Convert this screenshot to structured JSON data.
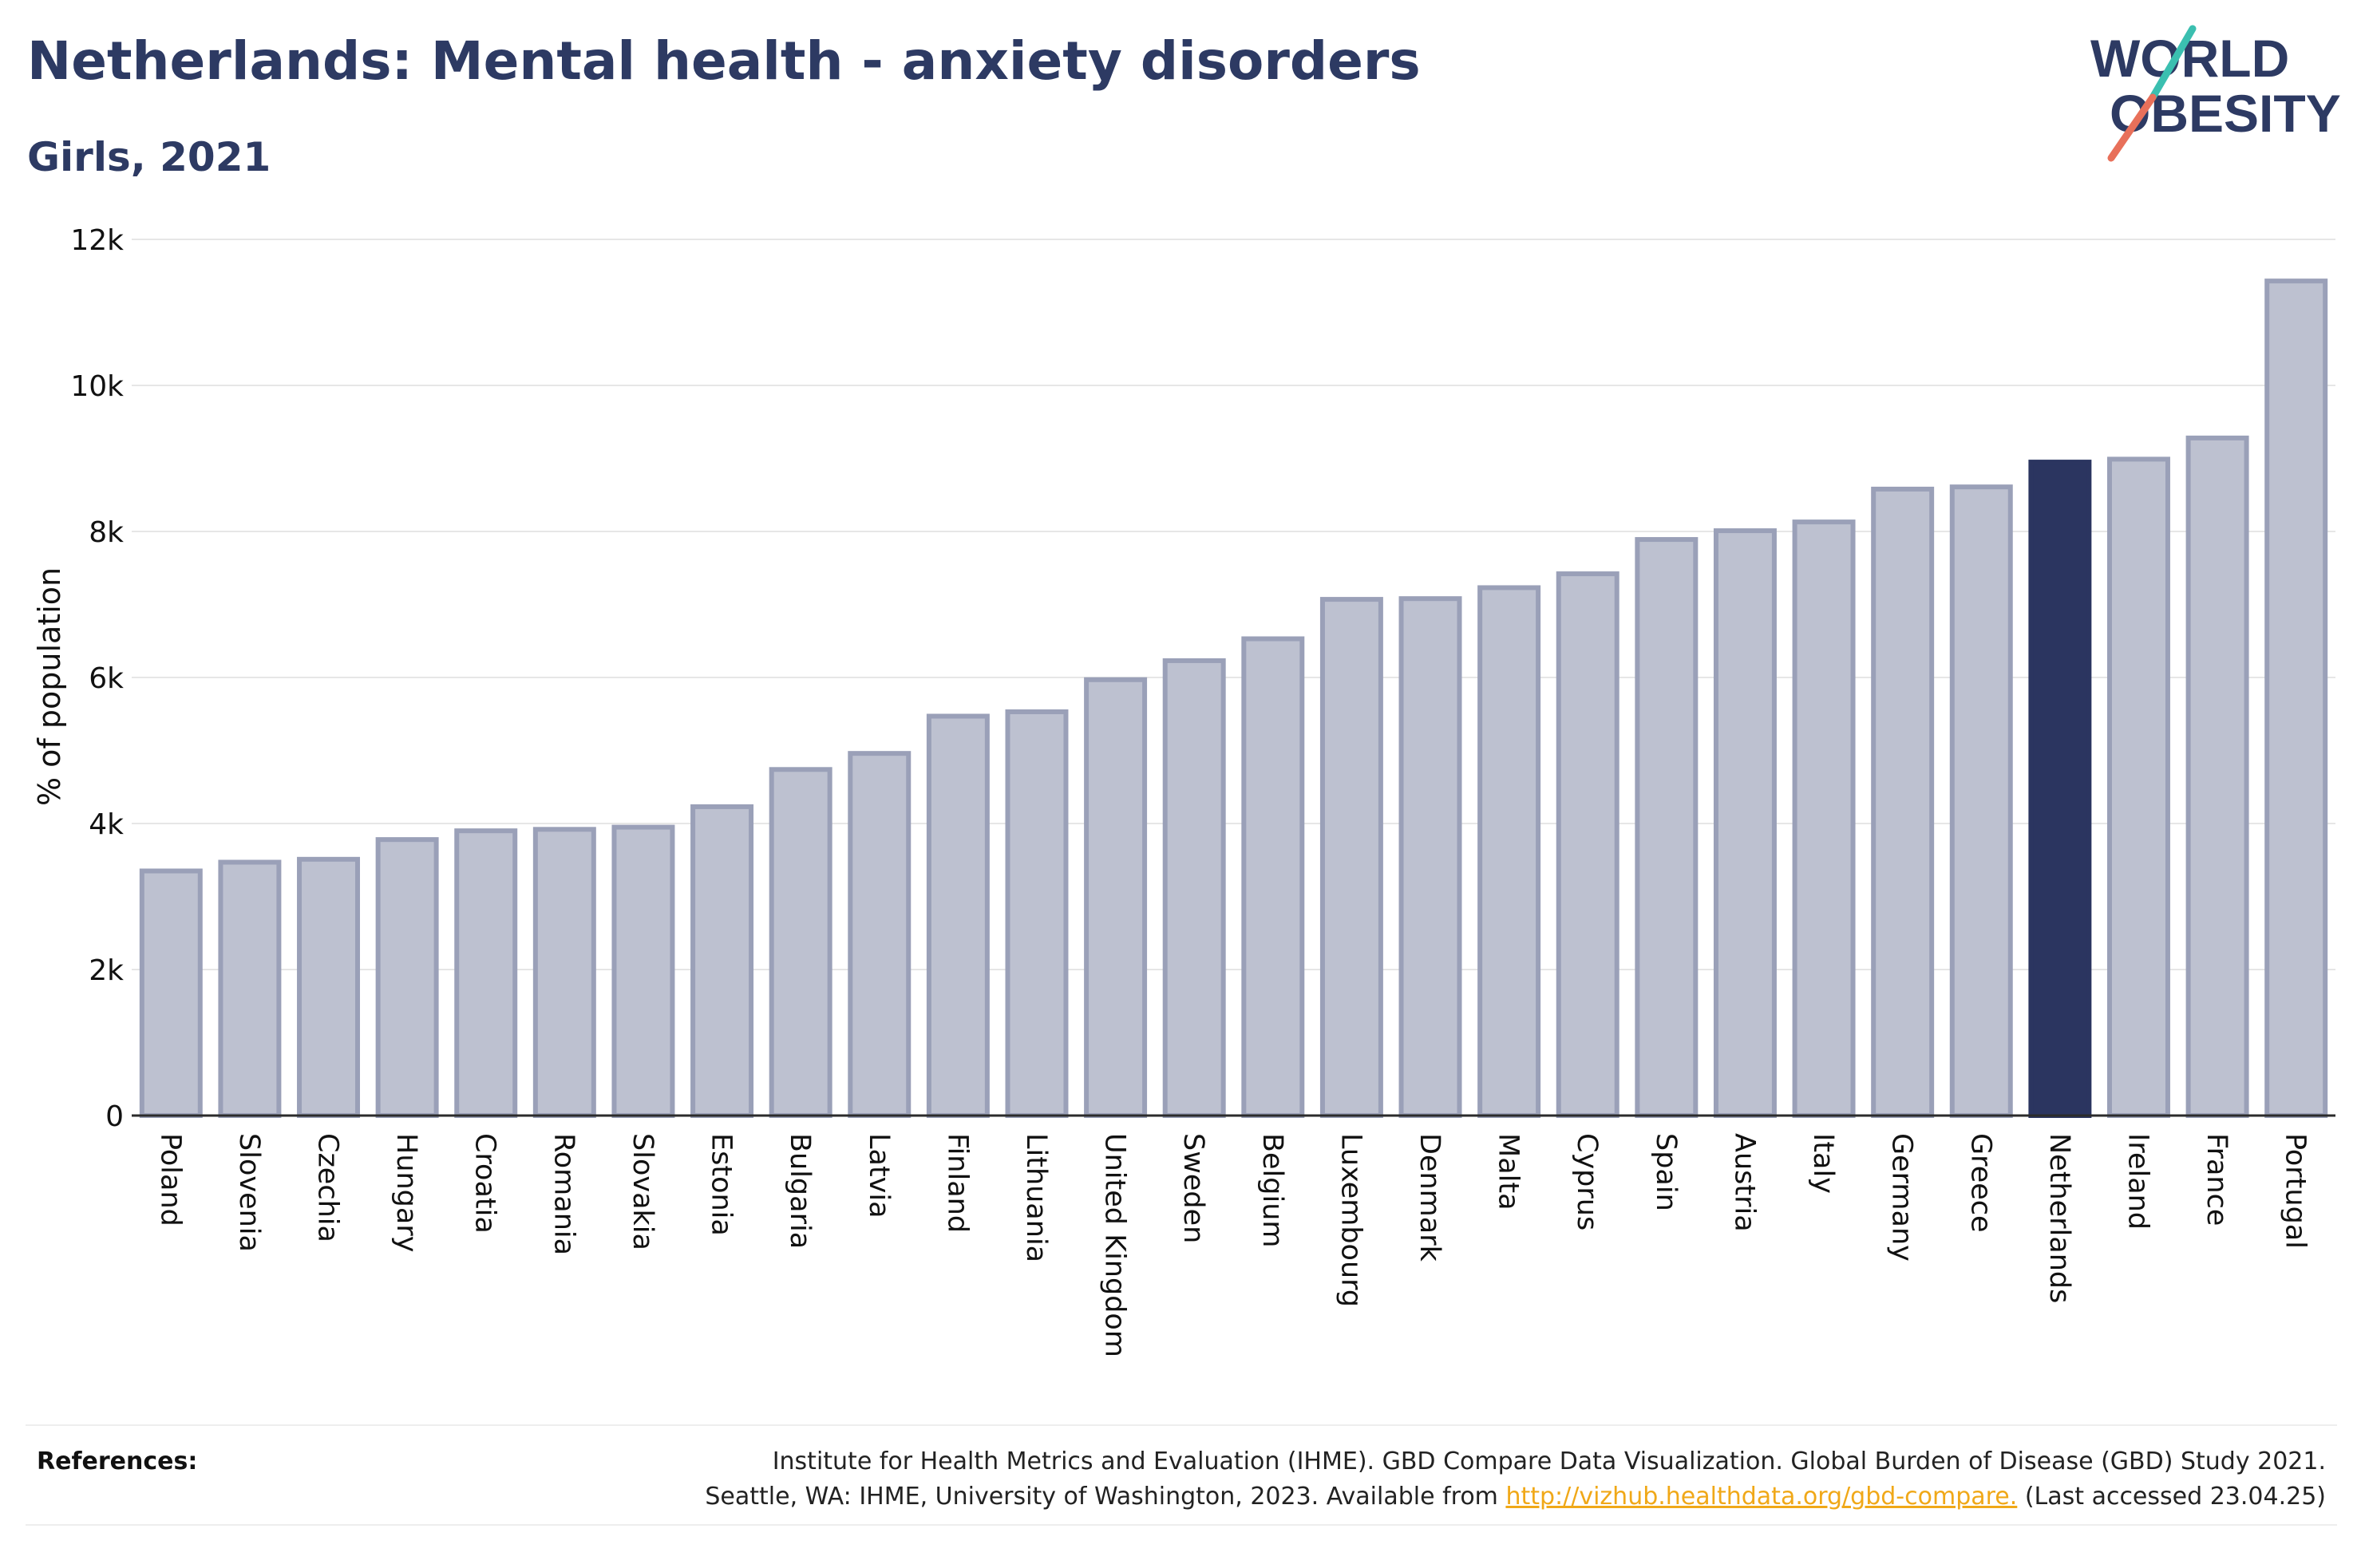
{
  "header": {
    "title": "Netherlands: Mental health - anxiety disorders",
    "subtitle": "Girls, 2021"
  },
  "logo": {
    "line1": "WORLD",
    "line2": "OBESITY",
    "icon": "slash-logo-icon",
    "colors": {
      "text": "#2d3a63",
      "slash_top": "#3bbfb0",
      "slash_bottom": "#e8705a"
    }
  },
  "colors": {
    "bar": "#bdc1d0",
    "bar_border": "#9aa0b8",
    "highlight": "#2b3560",
    "axis_text": "#111111",
    "grid": "#e6e6e6"
  },
  "chart_data": {
    "type": "bar",
    "title": "Netherlands: Mental health - anxiety disorders",
    "subtitle": "Girls, 2021",
    "xlabel": "",
    "ylabel": "% of population",
    "ylim": [
      0,
      12000
    ],
    "yticks": [
      0,
      2000,
      4000,
      6000,
      8000,
      10000,
      12000
    ],
    "ytick_labels": [
      "0",
      "2k",
      "4k",
      "6k",
      "8k",
      "10k",
      "12k"
    ],
    "grid": true,
    "highlight_category": "Netherlands",
    "categories": [
      "Poland",
      "Slovenia",
      "Czechia",
      "Hungary",
      "Croatia",
      "Romania",
      "Slovakia",
      "Estonia",
      "Bulgaria",
      "Latvia",
      "Finland",
      "Lithuania",
      "United Kingdom",
      "Sweden",
      "Belgium",
      "Luxembourg",
      "Denmark",
      "Malta",
      "Cyprus",
      "Spain",
      "Austria",
      "Italy",
      "Germany",
      "Greece",
      "Netherlands",
      "Ireland",
      "France",
      "Portugal"
    ],
    "values": [
      3350,
      3470,
      3510,
      3780,
      3900,
      3920,
      3950,
      4230,
      4740,
      4960,
      5470,
      5530,
      5970,
      6230,
      6530,
      7070,
      7080,
      7230,
      7420,
      7890,
      8010,
      8130,
      8580,
      8610,
      8950,
      8990,
      9280,
      11430
    ]
  },
  "references": {
    "label": "References:",
    "line1": "Institute for Health Metrics and Evaluation (IHME). GBD Compare Data Visualization. Global Burden of Disease (GBD) Study 2021.",
    "line2_prefix": "Seattle, WA: IHME, University of Washington, 2023. Available from ",
    "link": "http://vizhub.healthdata.org/gbd-compare.",
    "line2_suffix": " (Last accessed 23.04.25)"
  }
}
